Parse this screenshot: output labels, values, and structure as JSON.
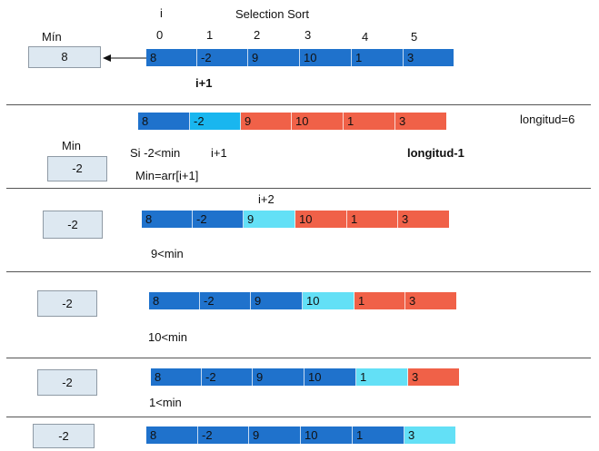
{
  "colors": {
    "blue": "#1f72cc",
    "light_blue": "#63e0f6",
    "cyan": "#19b6ef",
    "orange": "#f06148",
    "min_box": "#dde8f1"
  },
  "header": {
    "title": "Selection Sort",
    "index_symbol": "i",
    "indices": [
      "0",
      "1",
      "2",
      "3",
      "4",
      "5"
    ]
  },
  "row0": {
    "min_label": "Mín",
    "min_value": "8",
    "pointer_label": "i+1",
    "cells": [
      {
        "v": "8",
        "c": "blue"
      },
      {
        "v": "-2",
        "c": "blue"
      },
      {
        "v": "9",
        "c": "blue"
      },
      {
        "v": "10",
        "c": "blue"
      },
      {
        "v": "1",
        "c": "blue"
      },
      {
        "v": "3",
        "c": "blue"
      }
    ]
  },
  "row1": {
    "min_label": "Min",
    "min_value": "-2",
    "condition": "Si  -2<min",
    "pointer_label": "i+1",
    "assignment": "Min=arr[i+1]",
    "length_label": "longitud=6",
    "limit_label": "longitud-1",
    "cells": [
      {
        "v": "8",
        "c": "blue"
      },
      {
        "v": "-2",
        "c": "cyan"
      },
      {
        "v": "9",
        "c": "orange"
      },
      {
        "v": "10",
        "c": "orange"
      },
      {
        "v": "1",
        "c": "orange"
      },
      {
        "v": "3",
        "c": "orange"
      }
    ]
  },
  "row2": {
    "min_value": "-2",
    "pointer_label": "i+2",
    "condition": "9<min",
    "cells": [
      {
        "v": "8",
        "c": "blue"
      },
      {
        "v": "-2",
        "c": "blue"
      },
      {
        "v": "9",
        "c": "light_blue"
      },
      {
        "v": "10",
        "c": "orange"
      },
      {
        "v": "1",
        "c": "orange"
      },
      {
        "v": "3",
        "c": "orange"
      }
    ]
  },
  "row3": {
    "min_value": "-2",
    "condition": "10<min",
    "cells": [
      {
        "v": "8",
        "c": "blue"
      },
      {
        "v": "-2",
        "c": "blue"
      },
      {
        "v": "9",
        "c": "blue"
      },
      {
        "v": "10",
        "c": "light_blue"
      },
      {
        "v": "1",
        "c": "orange"
      },
      {
        "v": "3",
        "c": "orange"
      }
    ]
  },
  "row4": {
    "min_value": "-2",
    "condition": "1<min",
    "cells": [
      {
        "v": "8",
        "c": "blue"
      },
      {
        "v": "-2",
        "c": "blue"
      },
      {
        "v": "9",
        "c": "blue"
      },
      {
        "v": "10",
        "c": "blue"
      },
      {
        "v": "1",
        "c": "light_blue"
      },
      {
        "v": "3",
        "c": "orange"
      }
    ]
  },
  "row5": {
    "min_value": "-2",
    "cells": [
      {
        "v": "8",
        "c": "blue"
      },
      {
        "v": "-2",
        "c": "blue"
      },
      {
        "v": "9",
        "c": "blue"
      },
      {
        "v": "10",
        "c": "blue"
      },
      {
        "v": "1",
        "c": "blue"
      },
      {
        "v": "3",
        "c": "light_blue"
      }
    ]
  }
}
